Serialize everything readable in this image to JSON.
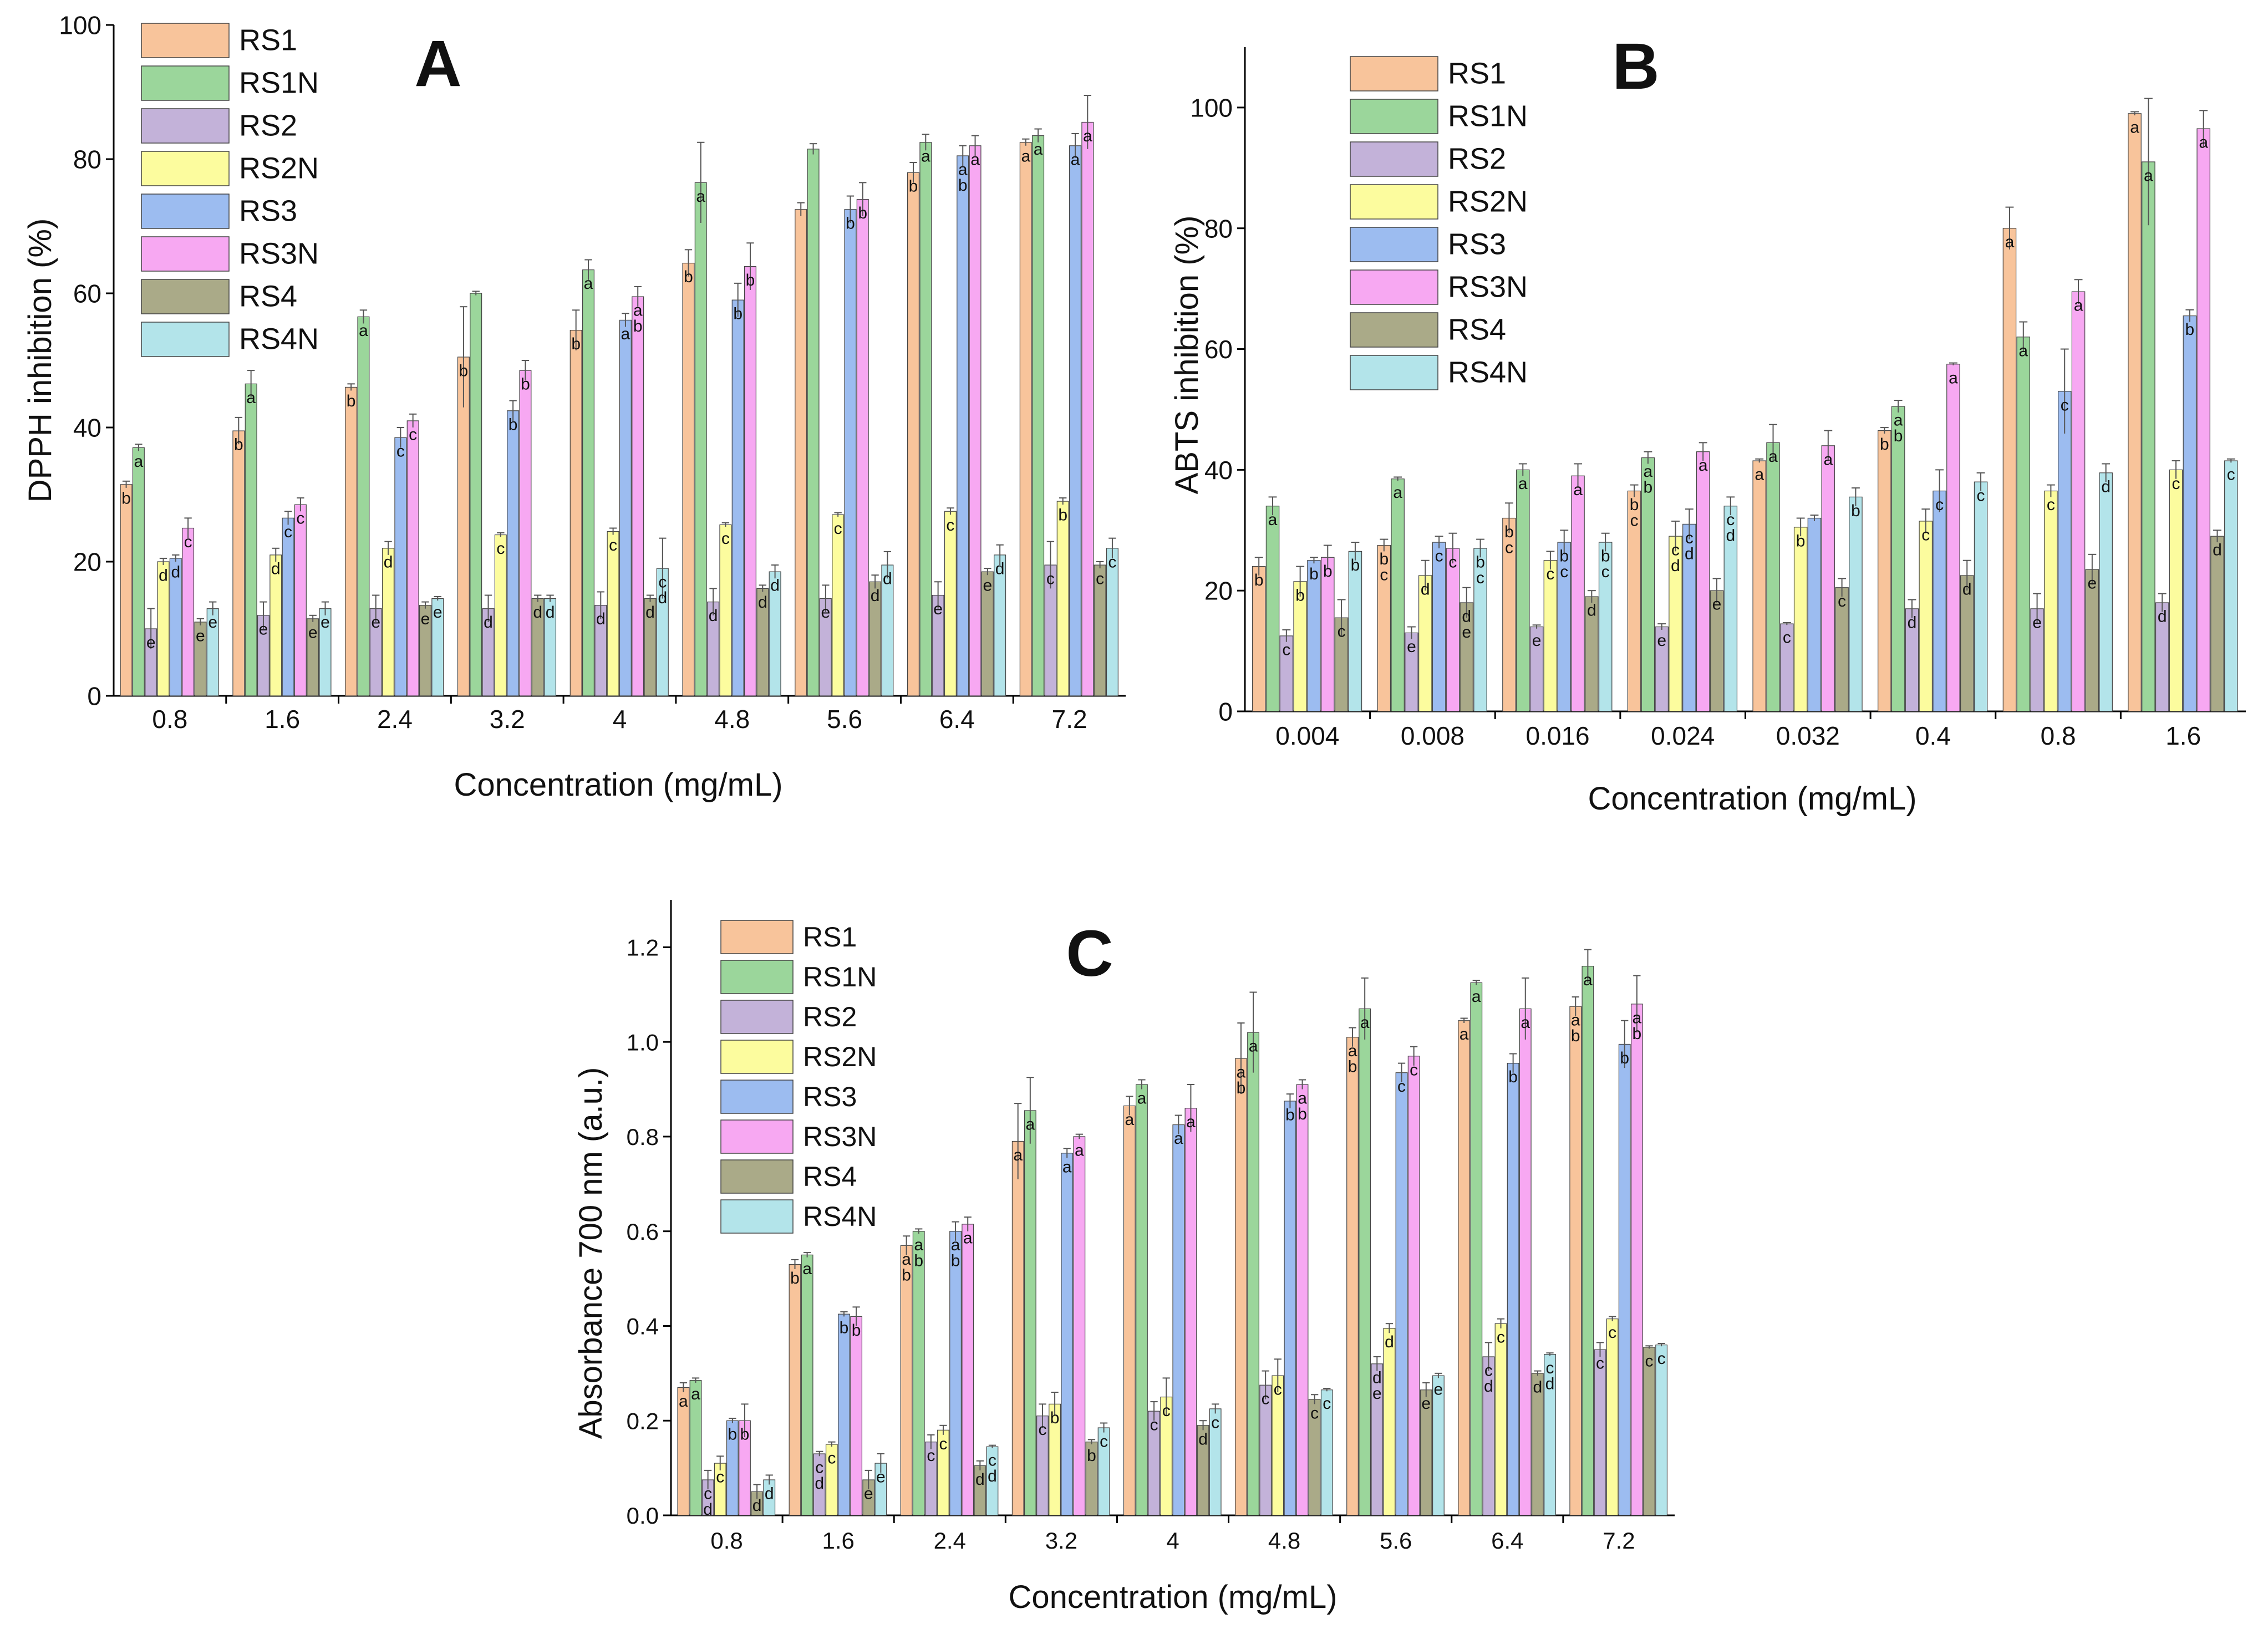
{
  "series_colors": [
    "#f8c49b",
    "#9bd69b",
    "#c3b2d9",
    "#fcfc9e",
    "#9cbcf0",
    "#f7a8f2",
    "#aaaa88",
    "#b3e4ea"
  ],
  "chart_data": [
    {
      "type": "bar",
      "panel_label": "A",
      "ylabel": "DPPH inhibition (%)",
      "xlabel": "Concentration (mg/mL)",
      "ylim": [
        0,
        100
      ],
      "yticks": [
        0,
        20,
        40,
        60,
        80,
        100
      ],
      "categories": [
        "0.8",
        "1.6",
        "2.4",
        "3.2",
        "4",
        "4.8",
        "5.6",
        "6.4",
        "7.2"
      ],
      "series": [
        {
          "name": "RS1",
          "values": [
            31.5,
            39.5,
            46,
            50.5,
            54.5,
            64.5,
            72.5,
            78,
            82.5
          ],
          "errors": [
            0.5,
            2,
            0.5,
            7.5,
            3,
            2,
            1,
            1.5,
            0.5
          ],
          "letters": [
            "b",
            "b",
            "b",
            "b",
            "b",
            "b",
            "",
            "b",
            "a"
          ]
        },
        {
          "name": "RS1N",
          "values": [
            37,
            46.5,
            56.5,
            60,
            63.5,
            76.5,
            81.5,
            82.5,
            83.5
          ],
          "errors": [
            0.5,
            2,
            1,
            0.3,
            1.5,
            6,
            0.8,
            1.2,
            1
          ],
          "letters": [
            "a",
            "a",
            "a",
            "",
            "a",
            "a",
            "",
            "a",
            "a"
          ]
        },
        {
          "name": "RS2",
          "values": [
            10,
            12,
            13,
            13,
            13.5,
            14,
            14.5,
            15,
            19.5
          ],
          "errors": [
            3,
            2,
            2,
            2,
            2,
            2,
            2,
            2,
            3.5
          ],
          "letters": [
            "e",
            "e",
            "e",
            "d",
            "d",
            "d",
            "e",
            "e",
            "c"
          ]
        },
        {
          "name": "RS2N",
          "values": [
            20,
            21,
            22,
            24,
            24.5,
            25.5,
            27,
            27.5,
            29
          ],
          "errors": [
            0.5,
            1,
            1,
            0.3,
            0.5,
            0.3,
            0.3,
            0.5,
            0.5
          ],
          "letters": [
            "d",
            "d",
            "d",
            "c",
            "c",
            "c",
            "c",
            "c",
            "b"
          ]
        },
        {
          "name": "RS3",
          "values": [
            20.5,
            26.5,
            38.5,
            42.5,
            56,
            59,
            72.5,
            80.5,
            82
          ],
          "errors": [
            0.5,
            1,
            1.5,
            1.5,
            1,
            2.5,
            2,
            1.5,
            1.8
          ],
          "letters": [
            "d",
            "c",
            "c",
            "b",
            "a",
            "b",
            "b",
            "ab",
            "a"
          ]
        },
        {
          "name": "RS3N",
          "values": [
            25,
            28.5,
            41,
            48.5,
            59.5,
            64,
            74,
            82,
            85.5
          ],
          "errors": [
            1.5,
            1,
            1,
            1.5,
            1.5,
            3.5,
            2.5,
            1.5,
            4
          ],
          "letters": [
            "c",
            "c",
            "c",
            "b",
            "ab",
            "b",
            "b",
            "a",
            "a"
          ]
        },
        {
          "name": "RS4",
          "values": [
            11,
            11.5,
            13.5,
            14.5,
            14.5,
            16,
            17,
            18.5,
            19.5
          ],
          "errors": [
            0.5,
            0.5,
            0.5,
            0.5,
            0.5,
            0.5,
            1,
            0.5,
            0.5
          ],
          "letters": [
            "e",
            "e",
            "e",
            "d",
            "d",
            "d",
            "d",
            "e",
            "c"
          ]
        },
        {
          "name": "RS4N",
          "values": [
            13,
            13,
            14.5,
            14.5,
            19,
            18.5,
            19.5,
            21,
            22
          ],
          "errors": [
            1,
            1,
            0.3,
            0.5,
            4.5,
            1,
            2,
            1.5,
            1.5
          ],
          "letters": [
            "e",
            "e",
            "e",
            "d",
            "cd",
            "d",
            "d",
            "d",
            "c"
          ]
        }
      ]
    },
    {
      "type": "bar",
      "panel_label": "B",
      "ylabel": "ABTS inhibition (%)",
      "xlabel": "Concentration (mg/mL)",
      "ylim": [
        0,
        110
      ],
      "yticks": [
        0,
        20,
        40,
        60,
        80,
        100
      ],
      "categories": [
        "0.004",
        "0.008",
        "0.016",
        "0.024",
        "0.032",
        "0.4",
        "0.8",
        "1.6"
      ],
      "series": [
        {
          "name": "RS1",
          "values": [
            24,
            27.5,
            32,
            36.5,
            41.5,
            46.5,
            80,
            99
          ],
          "errors": [
            1.5,
            1,
            2.5,
            1,
            0.3,
            0.5,
            3.5,
            0.3
          ],
          "letters": [
            "b",
            "bc",
            "bc",
            "bc",
            "a",
            "b",
            "a",
            "a"
          ]
        },
        {
          "name": "RS1N",
          "values": [
            34,
            38.5,
            40,
            42,
            44.5,
            50.5,
            62,
            91
          ],
          "errors": [
            1.5,
            0.3,
            1,
            1,
            3,
            1,
            2.5,
            10.5
          ],
          "letters": [
            "a",
            "a",
            "a",
            "ab",
            "a",
            "ab",
            "a",
            "a"
          ]
        },
        {
          "name": "RS2",
          "values": [
            12.5,
            13,
            14,
            14,
            14.5,
            17,
            17,
            18
          ],
          "errors": [
            1,
            1,
            0.3,
            0.5,
            0.2,
            1.5,
            2.5,
            1.5
          ],
          "letters": [
            "c",
            "e",
            "e",
            "e",
            "c",
            "d",
            "e",
            "d"
          ]
        },
        {
          "name": "RS2N",
          "values": [
            21.5,
            22.5,
            25,
            29,
            30.5,
            31.5,
            36.5,
            40
          ],
          "errors": [
            2.5,
            2.5,
            1.5,
            2.5,
            1.5,
            2,
            1,
            1.5
          ],
          "letters": [
            "b",
            "d",
            "c",
            "cd",
            "b",
            "c",
            "c",
            "c"
          ]
        },
        {
          "name": "RS3",
          "values": [
            25,
            28,
            28,
            31,
            32,
            36.5,
            53,
            65.5
          ],
          "errors": [
            0.5,
            1,
            2,
            2.5,
            0.5,
            3.5,
            7,
            1
          ],
          "letters": [
            "b",
            "c",
            "bc",
            "cd",
            "",
            "c",
            "c",
            "b"
          ]
        },
        {
          "name": "RS3N",
          "values": [
            25.5,
            27,
            39,
            43,
            44,
            57.5,
            69.5,
            96.5
          ],
          "errors": [
            2,
            2.5,
            2,
            1.5,
            2.5,
            0.2,
            2,
            3
          ],
          "letters": [
            "b",
            "c",
            "a",
            "a",
            "a",
            "a",
            "a",
            "a"
          ]
        },
        {
          "name": "RS4",
          "values": [
            15.5,
            18,
            19,
            20,
            20.5,
            22.5,
            23.5,
            29
          ],
          "errors": [
            3,
            2.5,
            1,
            2,
            1.5,
            2.5,
            2.5,
            1
          ],
          "letters": [
            "c",
            "de",
            "d",
            "e",
            "c",
            "d",
            "e",
            "d"
          ]
        },
        {
          "name": "RS4N",
          "values": [
            26.5,
            27,
            28,
            34,
            35.5,
            38,
            39.5,
            41.5
          ],
          "errors": [
            1.5,
            1.5,
            1.5,
            1.5,
            1.5,
            1.5,
            1.5,
            0.3
          ],
          "letters": [
            "b",
            "bc",
            "bc",
            "cd",
            "b",
            "c",
            "d",
            "c"
          ]
        }
      ]
    },
    {
      "type": "bar",
      "panel_label": "C",
      "ylabel": "Absorbance 700 nm (a.u.)",
      "xlabel": "Concentration (mg/mL)",
      "ylim": [
        0,
        1.3
      ],
      "yticks": [
        0.0,
        0.2,
        0.4,
        0.6,
        0.8,
        1.0,
        1.2
      ],
      "categories": [
        "0.8",
        "1.6",
        "2.4",
        "3.2",
        "4",
        "4.8",
        "5.6",
        "6.4",
        "7.2"
      ],
      "series": [
        {
          "name": "RS1",
          "values": [
            0.27,
            0.53,
            0.57,
            0.79,
            0.865,
            0.965,
            1.01,
            1.045,
            1.075
          ],
          "errors": [
            0.01,
            0.01,
            0.02,
            0.08,
            0.02,
            0.075,
            0.02,
            0.005,
            0.02
          ],
          "letters": [
            "a",
            "b",
            "ab",
            "a",
            "a",
            "ab",
            "ab",
            "a",
            "ab"
          ]
        },
        {
          "name": "RS1N",
          "values": [
            0.285,
            0.55,
            0.6,
            0.855,
            0.91,
            1.02,
            1.07,
            1.125,
            1.16
          ],
          "errors": [
            0.005,
            0.005,
            0.005,
            0.07,
            0.01,
            0.085,
            0.065,
            0.005,
            0.035
          ],
          "letters": [
            "a",
            "a",
            "ab",
            "a",
            "a",
            "a",
            "a",
            "a",
            "a"
          ]
        },
        {
          "name": "RS2",
          "values": [
            0.075,
            0.13,
            0.155,
            0.21,
            0.22,
            0.275,
            0.32,
            0.335,
            0.35
          ],
          "errors": [
            0.02,
            0.005,
            0.015,
            0.025,
            0.02,
            0.03,
            0.015,
            0.03,
            0.015
          ],
          "letters": [
            "cd",
            "cd",
            "c",
            "c",
            "c",
            "c",
            "de",
            "cd",
            "c"
          ]
        },
        {
          "name": "RS2N",
          "values": [
            0.11,
            0.15,
            0.18,
            0.235,
            0.25,
            0.295,
            0.395,
            0.405,
            0.415
          ],
          "errors": [
            0.015,
            0.005,
            0.01,
            0.025,
            0.04,
            0.035,
            0.01,
            0.01,
            0.005
          ],
          "letters": [
            "c",
            "c",
            "c",
            "b",
            "c",
            "c",
            "d",
            "c",
            "c"
          ]
        },
        {
          "name": "RS3",
          "values": [
            0.2,
            0.425,
            0.6,
            0.765,
            0.825,
            0.875,
            0.935,
            0.955,
            0.995
          ],
          "errors": [
            0.005,
            0.005,
            0.02,
            0.01,
            0.02,
            0.015,
            0.02,
            0.02,
            0.05
          ],
          "letters": [
            "b",
            "b",
            "ab",
            "a",
            "a",
            "b",
            "c",
            "b",
            "b"
          ]
        },
        {
          "name": "RS3N",
          "values": [
            0.2,
            0.42,
            0.615,
            0.8,
            0.86,
            0.91,
            0.97,
            1.07,
            1.08
          ],
          "errors": [
            0.035,
            0.02,
            0.015,
            0.005,
            0.05,
            0.01,
            0.02,
            0.065,
            0.06
          ],
          "letters": [
            "b",
            "b",
            "a",
            "a",
            "a",
            "ab",
            "c",
            "a",
            "ab"
          ]
        },
        {
          "name": "RS4",
          "values": [
            0.05,
            0.075,
            0.105,
            0.155,
            0.19,
            0.245,
            0.265,
            0.3,
            0.355
          ],
          "errors": [
            0.015,
            0.02,
            0.01,
            0.005,
            0.01,
            0.01,
            0.015,
            0.005,
            0.003
          ],
          "letters": [
            "d",
            "e",
            "d",
            "b",
            "d",
            "c",
            "e",
            "d",
            "c"
          ]
        },
        {
          "name": "RS4N",
          "values": [
            0.075,
            0.11,
            0.145,
            0.185,
            0.225,
            0.265,
            0.295,
            0.34,
            0.36
          ],
          "errors": [
            0.01,
            0.02,
            0.003,
            0.01,
            0.01,
            0.003,
            0.005,
            0.003,
            0.003
          ],
          "letters": [
            "d",
            "e",
            "cd",
            "c",
            "c",
            "c",
            "e",
            "cd",
            "c"
          ]
        }
      ]
    }
  ]
}
